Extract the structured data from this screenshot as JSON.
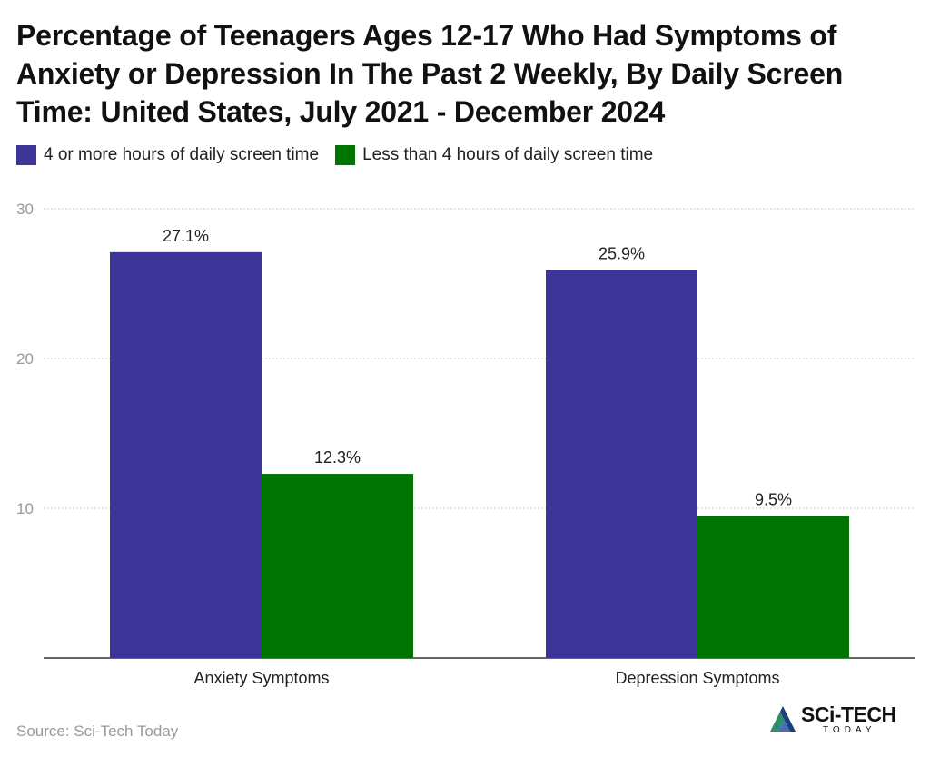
{
  "title": "Percentage of Teenagers Ages 12-17 Who Had Symptoms of Anxiety or Depression In The Past 2 Weekly, By Daily Screen Time: United States, July 2021 - December 2024",
  "source": "Source: Sci-Tech Today",
  "logo": {
    "main": "SCi-TECH",
    "sub": "TODAY",
    "colors": [
      "#2c8f6a",
      "#4a6fb8",
      "#1d3f7a"
    ]
  },
  "chart_data": {
    "type": "bar",
    "categories": [
      "Anxiety Symptoms",
      "Depression Symptoms"
    ],
    "series": [
      {
        "name": "4 or more hours of daily screen time",
        "color": "#3c3496",
        "values": [
          27.1,
          25.9
        ],
        "labels": [
          "27.1%",
          "25.9%"
        ]
      },
      {
        "name": "Less than 4 hours of daily screen time",
        "color": "#007400",
        "values": [
          12.3,
          9.5
        ],
        "labels": [
          "12.3%",
          "9.5%"
        ]
      }
    ],
    "ylim": [
      0,
      30
    ],
    "yticks": [
      10,
      20,
      30
    ],
    "ytick_labels": [
      "10",
      "20",
      "30"
    ],
    "grid": true,
    "legend": "top-left",
    "xlabel": "",
    "ylabel": ""
  }
}
